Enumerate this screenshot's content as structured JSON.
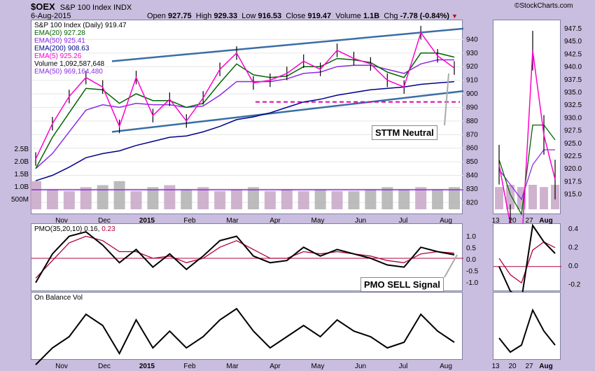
{
  "header": {
    "symbol": "$OEX",
    "name": "S&P 100 Index INDX",
    "date": "6-Aug-2015",
    "open_label": "Open",
    "open": "927.75",
    "high_label": "High",
    "high": "929.33",
    "low_label": "Low",
    "low": "916.53",
    "close_label": "Close",
    "close": "919.47",
    "volume_label": "Volume",
    "volume": "1.1B",
    "chg_label": "Chg",
    "chg": "-7.78 (-0.84%)",
    "chg_arrow": "▼",
    "watermark": "©StockCharts.com"
  },
  "legend": {
    "title": "S&P 100 Index (Daily) 919.47",
    "ema20": "EMA(20) 927.28",
    "ema50": "EMA(50) 925.41",
    "ema200": "EMA(200) 908.63",
    "ema5": "EMA(5) 925.26",
    "volume": "Volume 1,092,587,648",
    "vema50": "EMA(50) 969,164,480"
  },
  "colors": {
    "ema20": "#006400",
    "ema50": "#8b2be2",
    "ema200": "#00008b",
    "ema5": "#ff00cc",
    "trendline": "#3a6ea5",
    "support": "#e000b0",
    "pmo_signal": "#b0003a",
    "volume_up": "#c7a6c6",
    "volume_down": "#b0b0b0"
  },
  "annotations": {
    "sttm": "STTM Neutral",
    "pmo": "PMO SELL Signal"
  },
  "pmo_legend": {
    "name": "PMO(35,20,10)",
    "value": "0.16,",
    "signal": "0.23"
  },
  "obv_legend": "On Balance Vol",
  "axes": {
    "price_ticks": [
      "940",
      "930",
      "920",
      "910",
      "900",
      "890",
      "880",
      "870",
      "860",
      "850",
      "840",
      "830",
      "820"
    ],
    "volume_ticks": [
      "2.5B",
      "2.0B",
      "1.5B",
      "1.0B",
      "500M"
    ],
    "pmo_ticks": [
      "1.0",
      "0.5",
      "0.0",
      "-0.5",
      "-1.0"
    ],
    "month_labels": [
      "Nov",
      "Dec",
      "2015",
      "Feb",
      "Mar",
      "Apr",
      "May",
      "Jun",
      "Jul",
      "Aug"
    ],
    "zoom_price_ticks": [
      "947.5",
      "945.0",
      "942.5",
      "940.0",
      "937.5",
      "935.0",
      "932.5",
      "930.0",
      "927.5",
      "925.0",
      "922.5",
      "920.0",
      "917.5",
      "915.0"
    ],
    "zoom_pmo_ticks": [
      "0.4",
      "0.2",
      "0.0",
      "-0.2"
    ],
    "zoom_date_labels": [
      "13",
      "20",
      "27",
      "Aug"
    ]
  },
  "chart_data": {
    "type": "line",
    "title": "S&P 100 Index (Daily) 919.47",
    "x": [
      "2014-10-20",
      "2014-11-03",
      "2014-11-17",
      "2014-12-01",
      "2014-12-08",
      "2014-12-16",
      "2014-12-29",
      "2015-01-06",
      "2015-01-16",
      "2015-01-26",
      "2015-02-02",
      "2015-02-17",
      "2015-03-02",
      "2015-03-11",
      "2015-03-26",
      "2015-04-06",
      "2015-04-24",
      "2015-05-05",
      "2015-05-20",
      "2015-06-01",
      "2015-06-12",
      "2015-06-29",
      "2015-07-08",
      "2015-07-20",
      "2015-07-27",
      "2015-08-06"
    ],
    "series": [
      {
        "name": "S&P 100 Index",
        "values": [
          852,
          878,
          898,
          912,
          905,
          876,
          912,
          884,
          896,
          880,
          897,
          918,
          930,
          908,
          910,
          915,
          924,
          918,
          932,
          926,
          922,
          910,
          905,
          945,
          928,
          919
        ]
      },
      {
        "name": "EMA(20)",
        "values": [
          845,
          868,
          886,
          904,
          903,
          893,
          900,
          895,
          895,
          890,
          893,
          908,
          922,
          914,
          912,
          913,
          920,
          920,
          926,
          925,
          923,
          916,
          912,
          930,
          930,
          927
        ]
      },
      {
        "name": "EMA(50)",
        "values": [
          845,
          856,
          872,
          888,
          892,
          890,
          893,
          892,
          892,
          890,
          891,
          899,
          909,
          909,
          909,
          911,
          915,
          916,
          920,
          921,
          921,
          918,
          915,
          922,
          925,
          925
        ]
      },
      {
        "name": "EMA(200)",
        "values": [
          836,
          840,
          846,
          853,
          856,
          858,
          862,
          865,
          868,
          869,
          872,
          876,
          881,
          883,
          886,
          890,
          894,
          896,
          899,
          901,
          903,
          904,
          905,
          907,
          908,
          909
        ]
      }
    ],
    "volume": {
      "unit": "B",
      "values": [
        1.4,
        1.0,
        0.9,
        1.1,
        1.2,
        1.4,
        0.9,
        1.1,
        1.2,
        1.0,
        1.1,
        0.9,
        1.0,
        1.1,
        0.9,
        1.0,
        0.9,
        1.0,
        0.9,
        0.9,
        1.0,
        1.1,
        1.0,
        1.1,
        1.0,
        1.1
      ]
    },
    "pmo": {
      "values": [
        -1.1,
        0.2,
        1.0,
        1.2,
        0.6,
        -0.2,
        0.4,
        -0.4,
        0.2,
        -0.5,
        0.1,
        0.8,
        1.0,
        0.1,
        -0.2,
        -0.1,
        0.5,
        0.1,
        0.4,
        0.2,
        0.0,
        -0.3,
        -0.4,
        0.5,
        0.3,
        0.16
      ],
      "signal": [
        -0.9,
        -0.1,
        0.7,
        1.0,
        0.8,
        0.3,
        0.3,
        0.0,
        0.1,
        -0.2,
        0.0,
        0.5,
        0.8,
        0.4,
        0.0,
        0.0,
        0.3,
        0.2,
        0.3,
        0.2,
        0.1,
        -0.1,
        -0.2,
        0.2,
        0.3,
        0.23
      ]
    },
    "obv": {
      "values": [
        -6,
        -3,
        -1,
        3,
        1,
        -4,
        2,
        -3,
        0,
        -3,
        -1,
        2,
        4,
        0,
        -3,
        -1,
        1,
        -1,
        2,
        0,
        -1,
        -3,
        -2,
        3,
        0,
        -2
      ]
    },
    "price_ylim": [
      815,
      950
    ],
    "pmo_ylim": [
      -1.3,
      1.3
    ]
  }
}
